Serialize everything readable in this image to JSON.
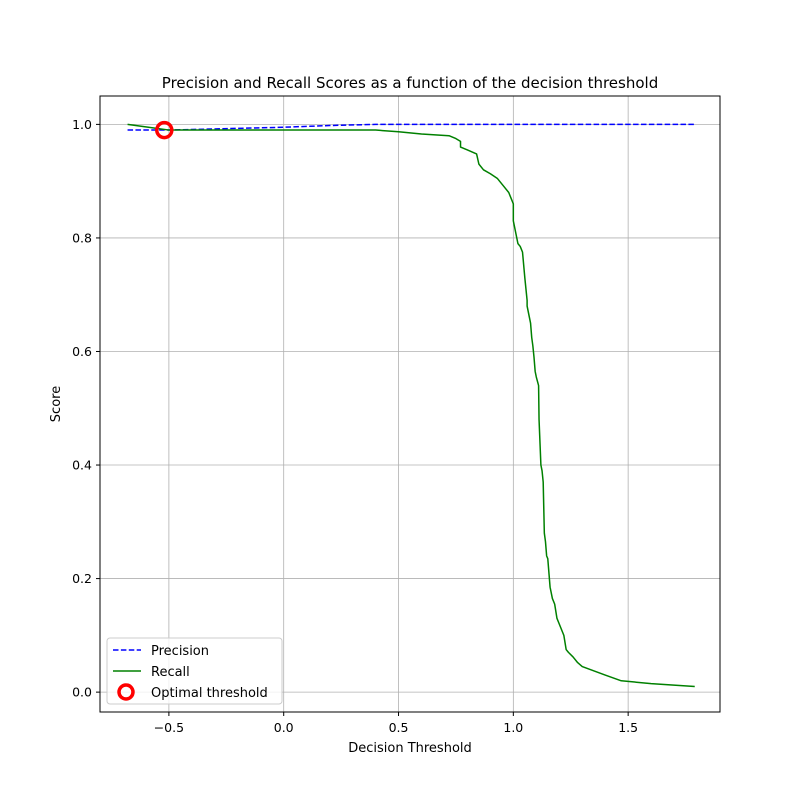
{
  "chart_data": {
    "type": "line",
    "title": "Precision and Recall Scores as a function of the decision threshold",
    "xlabel": "Decision Threshold",
    "ylabel": "Score",
    "xlim": [
      -0.8,
      1.9
    ],
    "ylim": [
      -0.035,
      1.05
    ],
    "xticks": [
      -0.5,
      0.0,
      0.5,
      1.0,
      1.5
    ],
    "xtick_labels": [
      "−0.5",
      "0.0",
      "0.5",
      "1.0",
      "1.5"
    ],
    "yticks": [
      0.0,
      0.2,
      0.4,
      0.6,
      0.8,
      1.0
    ],
    "ytick_labels": [
      "0.0",
      "0.2",
      "0.4",
      "0.6",
      "0.8",
      "1.0"
    ],
    "grid": true,
    "legend_position": "lower-left",
    "series": [
      {
        "name": "Precision",
        "color": "#0000ff",
        "style": "dashed",
        "x": [
          -0.68,
          -0.6,
          -0.5,
          -0.4,
          -0.2,
          0.0,
          0.2,
          0.4,
          0.6,
          0.8,
          1.0,
          1.2,
          1.4,
          1.6,
          1.79
        ],
        "y": [
          0.99,
          0.99,
          0.99,
          0.991,
          0.993,
          0.995,
          0.998,
          1.0,
          1.0,
          1.0,
          1.0,
          1.0,
          1.0,
          1.0,
          1.0
        ]
      },
      {
        "name": "Recall",
        "color": "#008000",
        "style": "solid",
        "x": [
          -0.68,
          -0.5,
          -0.45,
          0.0,
          0.4,
          0.5,
          0.6,
          0.72,
          0.75,
          0.77,
          0.77,
          0.8,
          0.84,
          0.85,
          0.87,
          0.9,
          0.93,
          0.96,
          0.98,
          0.99,
          1.0,
          1.0,
          1.01,
          1.02,
          1.03,
          1.04,
          1.05,
          1.06,
          1.06,
          1.07,
          1.075,
          1.08,
          1.085,
          1.09,
          1.095,
          1.1,
          1.11,
          1.112,
          1.115,
          1.12,
          1.125,
          1.13,
          1.135,
          1.14,
          1.145,
          1.15,
          1.16,
          1.165,
          1.17,
          1.18,
          1.19,
          1.2,
          1.22,
          1.23,
          1.24,
          1.26,
          1.28,
          1.3,
          1.4,
          1.47,
          1.6,
          1.79
        ],
        "y": [
          1.0,
          0.99,
          0.99,
          0.99,
          0.99,
          0.987,
          0.983,
          0.98,
          0.975,
          0.97,
          0.96,
          0.955,
          0.948,
          0.93,
          0.92,
          0.913,
          0.905,
          0.89,
          0.88,
          0.87,
          0.86,
          0.83,
          0.81,
          0.79,
          0.785,
          0.775,
          0.73,
          0.69,
          0.68,
          0.66,
          0.65,
          0.625,
          0.61,
          0.59,
          0.565,
          0.555,
          0.54,
          0.48,
          0.45,
          0.4,
          0.39,
          0.37,
          0.28,
          0.265,
          0.24,
          0.235,
          0.185,
          0.175,
          0.165,
          0.155,
          0.13,
          0.12,
          0.1,
          0.075,
          0.07,
          0.062,
          0.052,
          0.045,
          0.03,
          0.02,
          0.015,
          0.01
        ]
      }
    ],
    "marker": {
      "name": "Optimal threshold",
      "x": -0.52,
      "y": 0.99,
      "color": "#ff0000",
      "shape": "hollow-circle"
    }
  }
}
